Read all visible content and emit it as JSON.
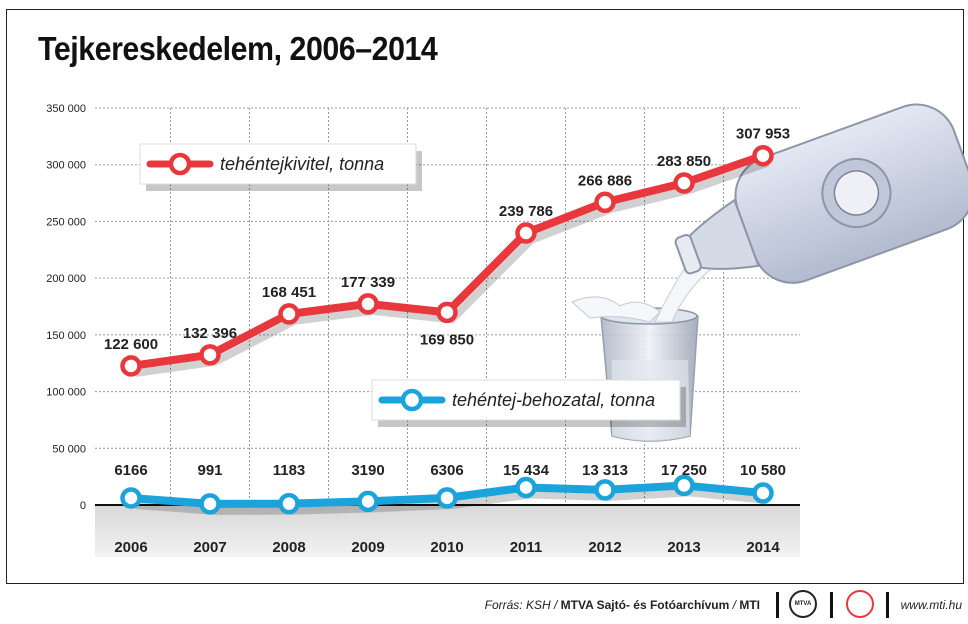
{
  "title": "Tejkereskedelem, 2006–2014",
  "chart_data": {
    "type": "line",
    "title": "Tejkereskedelem, 2006–2014",
    "categories": [
      "2006",
      "2007",
      "2008",
      "2009",
      "2010",
      "2011",
      "2012",
      "2013",
      "2014"
    ],
    "ylim": [
      0,
      350000
    ],
    "yticks": [
      0,
      50000,
      100000,
      150000,
      200000,
      250000,
      300000,
      350000
    ],
    "ytick_labels": [
      "0",
      "50 000",
      "100 000",
      "150 000",
      "200 000",
      "250 000",
      "300 000",
      "350 000"
    ],
    "grid": true,
    "series": [
      {
        "name": "tehéntejkivitel, tonna",
        "color": "#e8383d",
        "values": [
          122600,
          132396,
          168451,
          177339,
          169850,
          239786,
          266886,
          283850,
          307953
        ],
        "labels": [
          "122 600",
          "132 396",
          "168 451",
          "177 339",
          "169 850",
          "239 786",
          "266 886",
          "283 850",
          "307 953"
        ]
      },
      {
        "name": "tehéntej-behozatal, tonna",
        "color": "#1ba3dc",
        "values": [
          6166,
          991,
          1183,
          3190,
          6306,
          15434,
          13313,
          17250,
          10580
        ],
        "labels": [
          "6166",
          "991",
          "1183",
          "3190",
          "6306",
          "15 434",
          "13 313",
          "17 250",
          "10 580"
        ]
      }
    ]
  },
  "footer": {
    "source_prefix": "Forrás: KSH / ",
    "source_bold": "MTVA Sajtó- és Fotóarchívum",
    "source_sep": " / ",
    "source_mti": "MTI",
    "logo_text": "MTVA",
    "website": "www.mti.hu"
  }
}
